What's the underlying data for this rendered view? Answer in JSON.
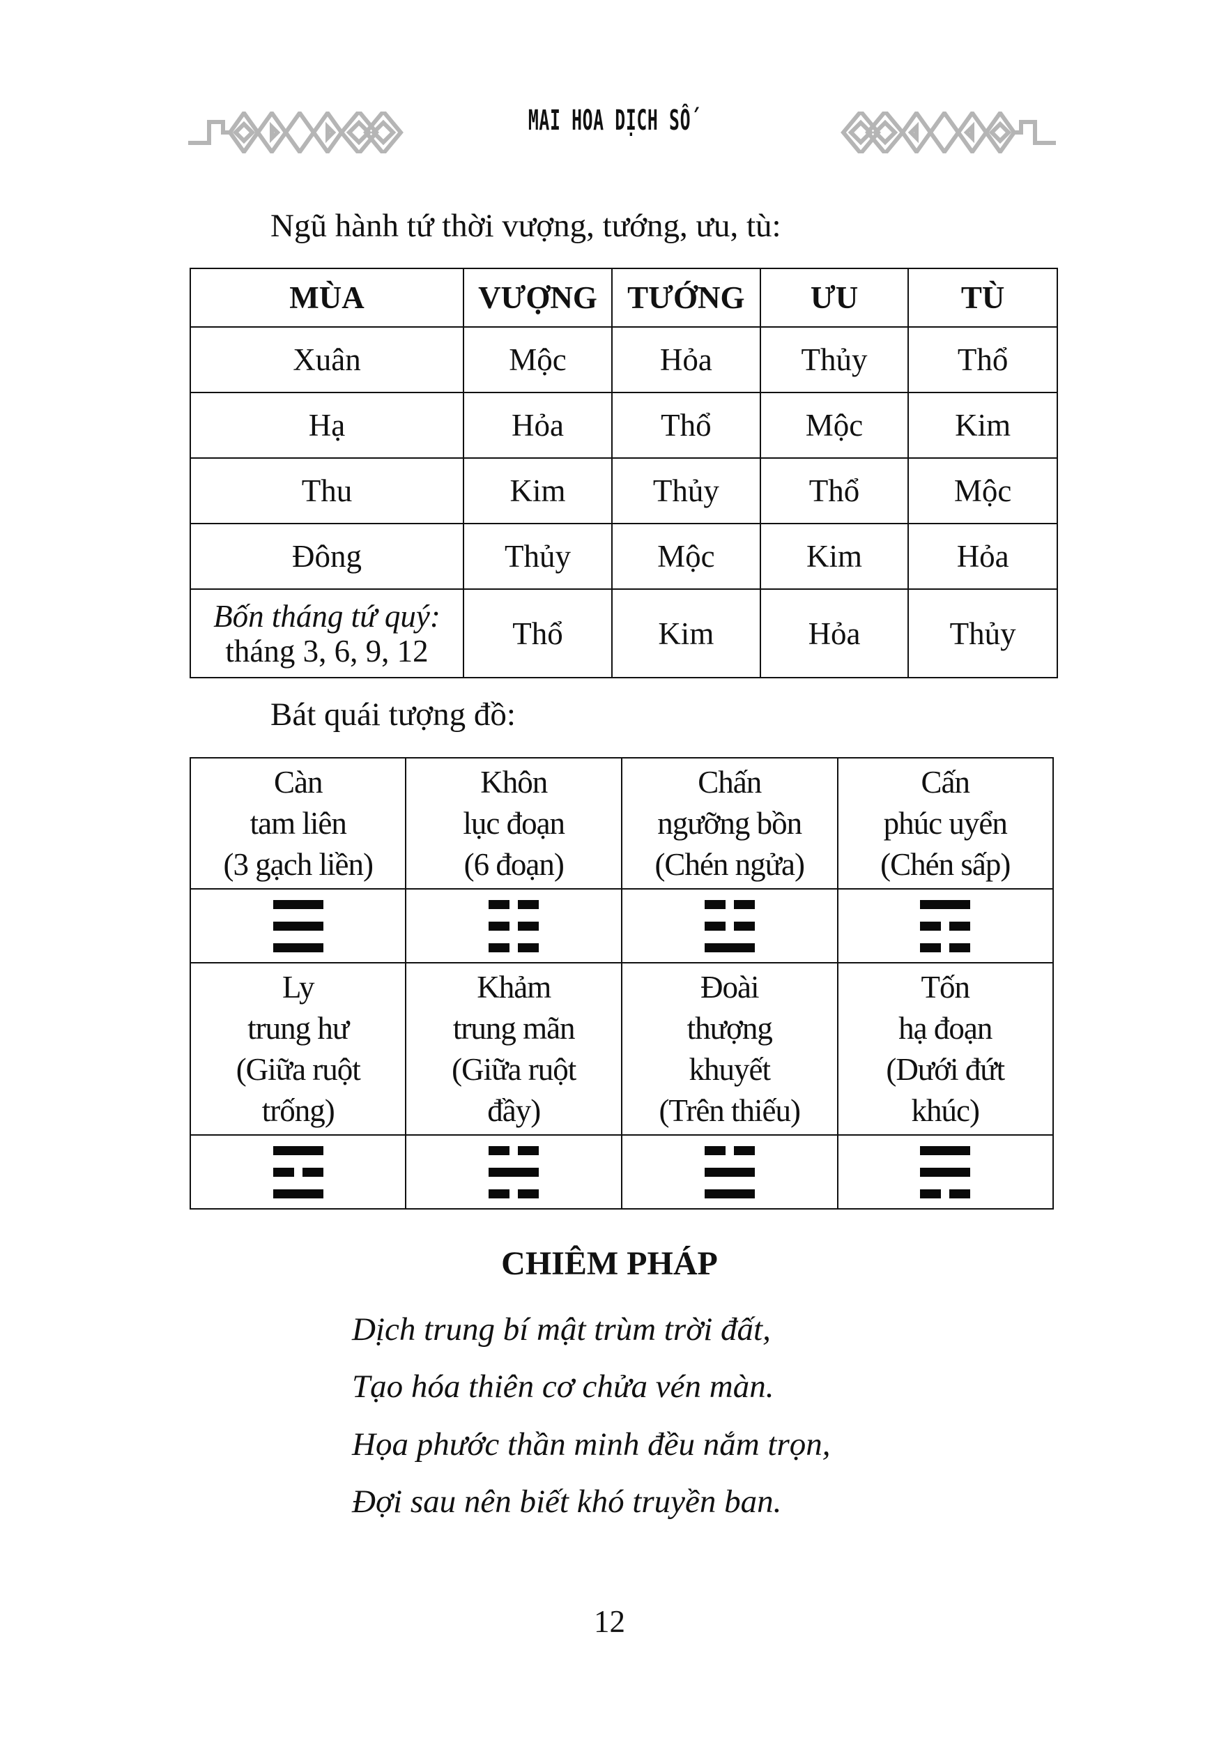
{
  "header": {
    "running_title": "MAI HOA DỊCH SỐ",
    "ornament_color": "#b5b5b5"
  },
  "section1": {
    "label": "Ngũ hành tứ thời vượng, tướng, ưu, tù:",
    "columns": [
      "MÙA",
      "VƯỢNG",
      "TƯỚNG",
      "ƯU",
      "TÙ"
    ],
    "rows": [
      {
        "season": "Xuân",
        "cells": [
          "Mộc",
          "Hỏa",
          "Thủy",
          "Thổ"
        ]
      },
      {
        "season": "Hạ",
        "cells": [
          "Hỏa",
          "Thổ",
          "Mộc",
          "Kim"
        ]
      },
      {
        "season": "Thu",
        "cells": [
          "Kim",
          "Thủy",
          "Thổ",
          "Mộc"
        ]
      },
      {
        "season": "Đông",
        "cells": [
          "Thủy",
          "Mộc",
          "Kim",
          "Hỏa"
        ]
      }
    ],
    "last_row": {
      "season_italic": "Bốn tháng tứ quý:",
      "season_sub": "tháng 3, 6, 9, 12",
      "cells": [
        "Thổ",
        "Kim",
        "Hỏa",
        "Thủy"
      ]
    }
  },
  "section2": {
    "label": "Bát quái tượng đồ:",
    "row1": [
      {
        "lines": [
          "Càn",
          "tam liên",
          "(3 gạch liền)"
        ],
        "trigram": [
          1,
          1,
          1
        ]
      },
      {
        "lines": [
          "Khôn",
          "lục đoạn",
          "(6 đoạn)"
        ],
        "trigram": [
          0,
          0,
          0
        ]
      },
      {
        "lines": [
          "Chấn",
          "ngưỡng bồn",
          "(Chén ngửa)"
        ],
        "trigram": [
          0,
          0,
          1
        ]
      },
      {
        "lines": [
          "Cấn",
          "phúc uyển",
          "(Chén sấp)"
        ],
        "trigram": [
          1,
          0,
          0
        ]
      }
    ],
    "row2": [
      {
        "lines": [
          "Ly",
          "trung hư",
          "(Giữa ruột",
          "trống)"
        ],
        "trigram": [
          1,
          0,
          1
        ]
      },
      {
        "lines": [
          "Khảm",
          "trung mãn",
          "(Giữa ruột",
          "đầy)"
        ],
        "trigram": [
          0,
          1,
          0
        ]
      },
      {
        "lines": [
          "Đoài",
          "thượng",
          "khuyết",
          "(Trên thiếu)"
        ],
        "trigram": [
          0,
          1,
          1
        ]
      },
      {
        "lines": [
          "Tốn",
          "hạ đoạn",
          "(Dưới đứt",
          "khúc)"
        ],
        "trigram": [
          1,
          1,
          0
        ]
      }
    ]
  },
  "section3": {
    "heading": "CHIÊM PHÁP",
    "poem": [
      "Dịch trung bí mật trùm trời đất,",
      "Tạo hóa thiên cơ chửa vén màn.",
      "Họa phước thần minh đều nắm trọn,",
      "Đợi sau nên biết khó truyền ban."
    ]
  },
  "page_number": "12"
}
